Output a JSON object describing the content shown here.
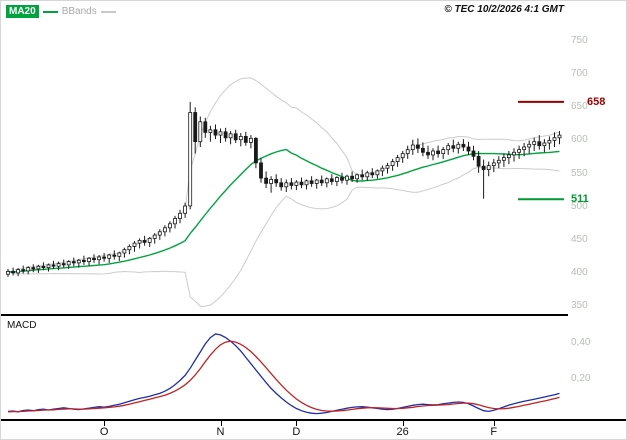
{
  "legend": {
    "ma20": "MA20",
    "bbands": "BBands"
  },
  "copyright": "© TEC 10/2/2026 4:1 GMT",
  "macd_label": "MACD",
  "levels": [
    {
      "name": "resistance",
      "label": "658",
      "value": 658,
      "color": "#990000"
    },
    {
      "name": "support",
      "label": "511",
      "value": 511,
      "color": "#009933"
    }
  ],
  "chart_data": [
    {
      "type": "candlestick",
      "title": "price panel",
      "candle_color": "#1a1a1a",
      "format": [
        "open",
        "high",
        "low",
        "close"
      ],
      "y_axis": {
        "ticks": [
          750,
          700,
          650,
          600,
          550,
          500,
          450,
          400,
          350
        ],
        "range": [
          350,
          790
        ],
        "grid": false
      },
      "x_ticks": [
        {
          "label": "O",
          "index": 19
        },
        {
          "label": "N",
          "index": 42
        },
        {
          "label": "D",
          "index": 57
        },
        {
          "label": "26",
          "index": 78
        },
        {
          "label": "F",
          "index": 96
        }
      ],
      "overlays": [
        {
          "name": "MA20",
          "color": "#00a33e"
        },
        {
          "name": "Bollinger Bands (20,2)",
          "color": "#cccccc"
        }
      ],
      "candles": [
        [
          398,
          406,
          394,
          402
        ],
        [
          402,
          408,
          396,
          400
        ],
        [
          400,
          407,
          395,
          405
        ],
        [
          405,
          411,
          399,
          403
        ],
        [
          403,
          410,
          398,
          408
        ],
        [
          408,
          413,
          401,
          406
        ],
        [
          406,
          412,
          400,
          410
        ],
        [
          410,
          416,
          404,
          408
        ],
        [
          408,
          414,
          402,
          412
        ],
        [
          412,
          418,
          406,
          410
        ],
        [
          410,
          417,
          404,
          414
        ],
        [
          414,
          420,
          408,
          412
        ],
        [
          412,
          419,
          406,
          417
        ],
        [
          417,
          423,
          410,
          415
        ],
        [
          415,
          421,
          408,
          419
        ],
        [
          419,
          426,
          412,
          417
        ],
        [
          417,
          424,
          411,
          422
        ],
        [
          422,
          428,
          415,
          420
        ],
        [
          420,
          427,
          413,
          424
        ],
        [
          424,
          430,
          417,
          422
        ],
        [
          422,
          429,
          415,
          427
        ],
        [
          427,
          434,
          420,
          425
        ],
        [
          425,
          432,
          418,
          430
        ],
        [
          430,
          438,
          423,
          435
        ],
        [
          435,
          443,
          428,
          440
        ],
        [
          440,
          448,
          432,
          445
        ],
        [
          445,
          452,
          437,
          449
        ],
        [
          449,
          456,
          441,
          446
        ],
        [
          446,
          454,
          439,
          452
        ],
        [
          452,
          460,
          444,
          457
        ],
        [
          457,
          466,
          450,
          462
        ],
        [
          462,
          472,
          455,
          468
        ],
        [
          468,
          478,
          461,
          474
        ],
        [
          474,
          486,
          467,
          482
        ],
        [
          482,
          495,
          475,
          490
        ],
        [
          490,
          506,
          483,
          501
        ],
        [
          501,
          658,
          496,
          642
        ],
        [
          642,
          650,
          580,
          598
        ],
        [
          598,
          636,
          590,
          628
        ],
        [
          628,
          634,
          604,
          612
        ],
        [
          612,
          622,
          598,
          616
        ],
        [
          616,
          624,
          602,
          608
        ],
        [
          608,
          618,
          596,
          613
        ],
        [
          613,
          619,
          598,
          604
        ],
        [
          604,
          614,
          594,
          610
        ],
        [
          610,
          616,
          596,
          601
        ],
        [
          601,
          611,
          591,
          606
        ],
        [
          606,
          613,
          592,
          597
        ],
        [
          597,
          608,
          588,
          603
        ],
        [
          603,
          605,
          558,
          566
        ],
        [
          566,
          573,
          536,
          543
        ],
        [
          543,
          553,
          528,
          535
        ],
        [
          535,
          546,
          521,
          541
        ],
        [
          541,
          549,
          530,
          536
        ],
        [
          536,
          543,
          524,
          530
        ],
        [
          530,
          541,
          522,
          536
        ],
        [
          536,
          543,
          526,
          532
        ],
        [
          532,
          540,
          525,
          537
        ],
        [
          537,
          544,
          528,
          533
        ],
        [
          533,
          541,
          526,
          539
        ],
        [
          539,
          546,
          530,
          535
        ],
        [
          535,
          542,
          527,
          540
        ],
        [
          540,
          547,
          531,
          536
        ],
        [
          536,
          544,
          529,
          542
        ],
        [
          542,
          549,
          533,
          538
        ],
        [
          538,
          546,
          531,
          544
        ],
        [
          544,
          551,
          535,
          540
        ],
        [
          540,
          548,
          533,
          546
        ],
        [
          546,
          553,
          537,
          542
        ],
        [
          542,
          550,
          536,
          548
        ],
        [
          548,
          556,
          540,
          545
        ],
        [
          545,
          554,
          539,
          551
        ],
        [
          551,
          558,
          543,
          548
        ],
        [
          548,
          556,
          542,
          554
        ],
        [
          554,
          562,
          546,
          558
        ],
        [
          558,
          566,
          550,
          562
        ],
        [
          562,
          572,
          554,
          568
        ],
        [
          568,
          578,
          560,
          574
        ],
        [
          574,
          584,
          566,
          580
        ],
        [
          580,
          592,
          572,
          586
        ],
        [
          586,
          601,
          578,
          593
        ],
        [
          593,
          603,
          581,
          588
        ],
        [
          588,
          597,
          576,
          582
        ],
        [
          582,
          592,
          572,
          578
        ],
        [
          578,
          588,
          570,
          584
        ],
        [
          584,
          592,
          574,
          580
        ],
        [
          580,
          590,
          572,
          586
        ],
        [
          586,
          596,
          578,
          592
        ],
        [
          592,
          601,
          582,
          588
        ],
        [
          588,
          598,
          580,
          594
        ],
        [
          594,
          602,
          584,
          590
        ],
        [
          590,
          598,
          578,
          584
        ],
        [
          584,
          592,
          570,
          576
        ],
        [
          576,
          584,
          551,
          561
        ],
        [
          561,
          571,
          512,
          556
        ],
        [
          556,
          568,
          546,
          562
        ],
        [
          562,
          572,
          552,
          566
        ],
        [
          566,
          576,
          558,
          570
        ],
        [
          570,
          580,
          560,
          574
        ],
        [
          574,
          584,
          564,
          578
        ],
        [
          578,
          588,
          568,
          582
        ],
        [
          582,
          592,
          572,
          586
        ],
        [
          586,
          596,
          576,
          590
        ],
        [
          590,
          600,
          580,
          594
        ],
        [
          594,
          604,
          584,
          598
        ],
        [
          598,
          608,
          586,
          592
        ],
        [
          592,
          602,
          582,
          596
        ],
        [
          596,
          606,
          586,
          600
        ],
        [
          600,
          612,
          590,
          604
        ],
        [
          604,
          614,
          594,
          608
        ]
      ]
    },
    {
      "type": "line",
      "title": "MACD panel",
      "y_ticks": [
        {
          "label": "0,40",
          "value": 0.4
        },
        {
          "label": "0,20",
          "value": 0.2
        }
      ],
      "series": [
        {
          "name": "macd",
          "color": "#1f2fa6",
          "values": [
            0.02,
            0.022,
            0.018,
            0.025,
            0.028,
            0.024,
            0.03,
            0.033,
            0.028,
            0.032,
            0.036,
            0.04,
            0.036,
            0.032,
            0.03,
            0.034,
            0.038,
            0.042,
            0.046,
            0.044,
            0.048,
            0.054,
            0.06,
            0.068,
            0.076,
            0.085,
            0.092,
            0.098,
            0.104,
            0.112,
            0.12,
            0.132,
            0.148,
            0.168,
            0.192,
            0.22,
            0.26,
            0.305,
            0.35,
            0.395,
            0.43,
            0.45,
            0.445,
            0.43,
            0.41,
            0.385,
            0.355,
            0.32,
            0.285,
            0.25,
            0.215,
            0.18,
            0.148,
            0.12,
            0.095,
            0.072,
            0.052,
            0.036,
            0.024,
            0.015,
            0.01,
            0.008,
            0.01,
            0.014,
            0.02,
            0.026,
            0.032,
            0.038,
            0.042,
            0.045,
            0.046,
            0.044,
            0.04,
            0.036,
            0.032,
            0.03,
            0.032,
            0.036,
            0.042,
            0.048,
            0.054,
            0.058,
            0.06,
            0.058,
            0.056,
            0.058,
            0.062,
            0.066,
            0.07,
            0.072,
            0.07,
            0.062,
            0.05,
            0.036,
            0.024,
            0.02,
            0.026,
            0.035,
            0.045,
            0.055,
            0.063,
            0.07,
            0.076,
            0.082,
            0.088,
            0.094,
            0.1,
            0.106,
            0.112,
            0.12
          ]
        },
        {
          "name": "signal",
          "color": "#c32222",
          "values": [
            0.018,
            0.019,
            0.019,
            0.02,
            0.022,
            0.023,
            0.025,
            0.027,
            0.028,
            0.029,
            0.031,
            0.033,
            0.034,
            0.034,
            0.033,
            0.033,
            0.034,
            0.036,
            0.038,
            0.04,
            0.042,
            0.045,
            0.049,
            0.054,
            0.06,
            0.067,
            0.074,
            0.081,
            0.088,
            0.095,
            0.102,
            0.11,
            0.12,
            0.133,
            0.149,
            0.168,
            0.192,
            0.222,
            0.258,
            0.296,
            0.333,
            0.365,
            0.39,
            0.405,
            0.41,
            0.405,
            0.393,
            0.375,
            0.352,
            0.325,
            0.295,
            0.263,
            0.23,
            0.198,
            0.167,
            0.138,
            0.112,
            0.089,
            0.07,
            0.054,
            0.041,
            0.031,
            0.025,
            0.022,
            0.021,
            0.022,
            0.024,
            0.027,
            0.031,
            0.035,
            0.038,
            0.04,
            0.041,
            0.04,
            0.039,
            0.037,
            0.036,
            0.036,
            0.037,
            0.04,
            0.043,
            0.047,
            0.05,
            0.053,
            0.054,
            0.055,
            0.056,
            0.058,
            0.061,
            0.064,
            0.066,
            0.066,
            0.063,
            0.057,
            0.049,
            0.041,
            0.036,
            0.034,
            0.035,
            0.038,
            0.043,
            0.048,
            0.054,
            0.06,
            0.066,
            0.072,
            0.078,
            0.084,
            0.091,
            0.098
          ]
        }
      ]
    }
  ]
}
